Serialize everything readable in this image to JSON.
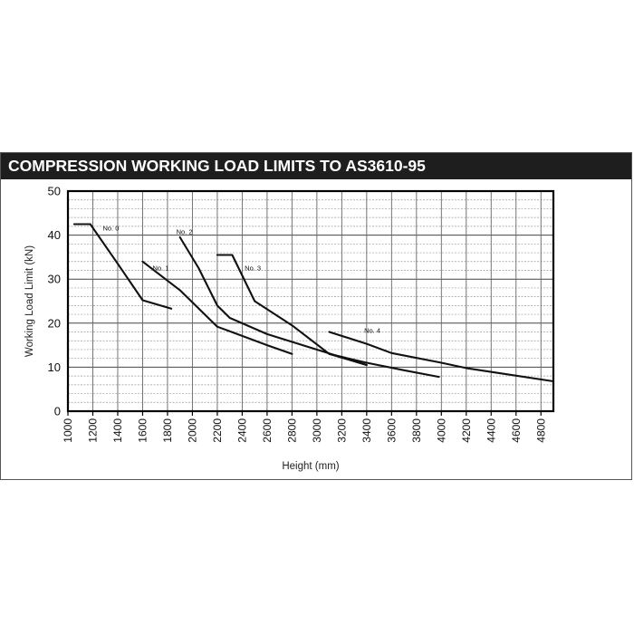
{
  "header": {
    "title": "COMPRESSION WORKING LOAD LIMITS TO AS3610-95"
  },
  "colors": {
    "banner": "#1e1e1e",
    "line": "#111111",
    "grid": "#888888"
  },
  "chart_data": {
    "type": "line",
    "title": "COMPRESSION WORKING LOAD LIMITS TO AS3610-95",
    "xlabel": "Height (mm)",
    "ylabel": "Working Load Limit (kN)",
    "xlim": [
      1000,
      4900
    ],
    "ylim": [
      0,
      50
    ],
    "xticks": [
      1000,
      1200,
      1400,
      1600,
      1800,
      2000,
      2200,
      2400,
      2600,
      2800,
      3000,
      3200,
      3400,
      3600,
      3800,
      4000,
      4200,
      4400,
      4600,
      4800
    ],
    "yticks": [
      0,
      10,
      20,
      30,
      40,
      50
    ],
    "grid": true,
    "series": [
      {
        "name": "No. 0",
        "points": [
          [
            1050,
            42.5
          ],
          [
            1180,
            42.5
          ],
          [
            1400,
            33.5
          ],
          [
            1600,
            25.2
          ],
          [
            1830,
            23.3
          ]
        ]
      },
      {
        "name": "No. 1",
        "points": [
          [
            1600,
            34
          ],
          [
            1900,
            27.5
          ],
          [
            2200,
            19.2
          ],
          [
            2600,
            15
          ],
          [
            2800,
            13
          ]
        ]
      },
      {
        "name": "No. 2",
        "points": [
          [
            1900,
            39.5
          ],
          [
            2050,
            32.5
          ],
          [
            2200,
            24
          ],
          [
            2300,
            21.2
          ],
          [
            2600,
            17.5
          ],
          [
            3000,
            14
          ],
          [
            3400,
            10.5
          ]
        ]
      },
      {
        "name": "No. 3",
        "points": [
          [
            2200,
            35.5
          ],
          [
            2320,
            35.5
          ],
          [
            2500,
            25
          ],
          [
            2800,
            19.5
          ],
          [
            3100,
            13
          ],
          [
            3400,
            10.5
          ]
        ]
      },
      {
        "name": "No. 4",
        "points": [
          [
            3100,
            18
          ],
          [
            3400,
            15.3
          ],
          [
            3600,
            13.2
          ],
          [
            4000,
            11
          ],
          [
            4200,
            9.8
          ],
          [
            4500,
            8.5
          ],
          [
            4900,
            6.8
          ]
        ]
      },
      {
        "name": "",
        "points": [
          [
            3100,
            13
          ],
          [
            3400,
            11
          ],
          [
            3700,
            9.3
          ],
          [
            3980,
            7.8
          ]
        ]
      }
    ],
    "annotations": [
      {
        "text": "No. 0",
        "x": 1280,
        "y": 41
      },
      {
        "text": "No. 1",
        "x": 1680,
        "y": 32
      },
      {
        "text": "No. 2",
        "x": 1870,
        "y": 40.2
      },
      {
        "text": "No. 3",
        "x": 2420,
        "y": 32
      },
      {
        "text": "No. 4",
        "x": 3380,
        "y": 17.8
      }
    ]
  }
}
